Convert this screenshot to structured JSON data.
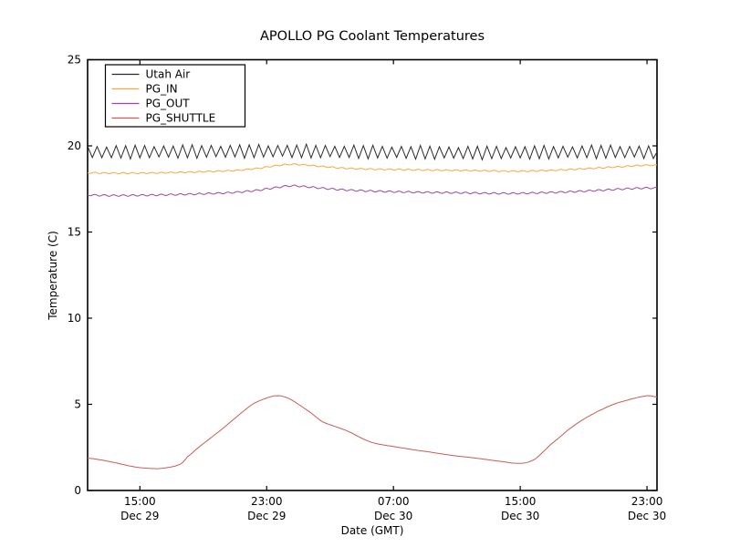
{
  "figure": {
    "background": "#ffffff",
    "frame_color": "#000000"
  },
  "chart_data": {
    "type": "line",
    "title": "APOLLO PG Coolant Temperatures",
    "xlabel": "Date (GMT)",
    "ylabel": "Temperature (C)",
    "ylim": [
      0,
      25
    ],
    "xlim_hours": [
      11.7,
      47.63
    ],
    "x_hours_epoch": "hours since Dec 29 00:00 GMT",
    "grid": false,
    "legend_position": "upper-left",
    "tick_direction": "in",
    "y_ticks": [
      0,
      5,
      10,
      15,
      20,
      25
    ],
    "x_ticks": [
      {
        "hour": 15,
        "time": "15:00",
        "date": "Dec 29"
      },
      {
        "hour": 23,
        "time": "23:00",
        "date": "Dec 29"
      },
      {
        "hour": 31,
        "time": "07:00",
        "date": "Dec 30"
      },
      {
        "hour": 39,
        "time": "15:00",
        "date": "Dec 30"
      },
      {
        "hour": 47,
        "time": "23:00",
        "date": "Dec 30"
      }
    ],
    "series": [
      {
        "name": "Utah Air",
        "color": "#2b2b2b",
        "waveform": "triangle",
        "period_hours": 0.6,
        "amplitude": 0.35,
        "peak_jitter": 0.04,
        "mean_keypoints": [
          [
            11.7,
            19.63
          ],
          [
            16,
            19.66
          ],
          [
            20,
            19.68
          ],
          [
            24,
            19.7
          ],
          [
            28,
            19.66
          ],
          [
            32,
            19.62
          ],
          [
            36,
            19.6
          ],
          [
            40,
            19.62
          ],
          [
            44,
            19.66
          ],
          [
            47.63,
            19.64
          ]
        ]
      },
      {
        "name": "PG_IN",
        "color": "#fca63c",
        "waveform": "sine",
        "period_hours": 0.6,
        "amplitude": 0.035,
        "mean_keypoints": [
          [
            11.7,
            18.44
          ],
          [
            13,
            18.42
          ],
          [
            15,
            18.42
          ],
          [
            17,
            18.45
          ],
          [
            19,
            18.5
          ],
          [
            21,
            18.57
          ],
          [
            22.5,
            18.7
          ],
          [
            23.6,
            18.85
          ],
          [
            24.5,
            18.93
          ],
          [
            25.3,
            18.9
          ],
          [
            26.5,
            18.8
          ],
          [
            28,
            18.7
          ],
          [
            29.5,
            18.65
          ],
          [
            31,
            18.63
          ],
          [
            33,
            18.6
          ],
          [
            35,
            18.58
          ],
          [
            37,
            18.55
          ],
          [
            38.5,
            18.53
          ],
          [
            40,
            18.55
          ],
          [
            42,
            18.62
          ],
          [
            44,
            18.72
          ],
          [
            45.5,
            18.8
          ],
          [
            46.8,
            18.87
          ],
          [
            47.63,
            18.87
          ]
        ]
      },
      {
        "name": "PG_OUT",
        "color": "#9c44a4",
        "waveform": "sine",
        "period_hours": 0.6,
        "amplitude": 0.045,
        "mean_keypoints": [
          [
            11.7,
            17.15
          ],
          [
            13,
            17.12
          ],
          [
            15,
            17.13
          ],
          [
            17,
            17.17
          ],
          [
            19,
            17.22
          ],
          [
            21,
            17.3
          ],
          [
            22.5,
            17.43
          ],
          [
            23.6,
            17.58
          ],
          [
            24.5,
            17.68
          ],
          [
            25.3,
            17.64
          ],
          [
            26.5,
            17.54
          ],
          [
            28,
            17.44
          ],
          [
            29.5,
            17.38
          ],
          [
            31,
            17.34
          ],
          [
            33,
            17.3
          ],
          [
            35,
            17.28
          ],
          [
            37,
            17.25
          ],
          [
            38.5,
            17.24
          ],
          [
            40,
            17.27
          ],
          [
            42,
            17.33
          ],
          [
            44,
            17.42
          ],
          [
            45.5,
            17.5
          ],
          [
            46.8,
            17.55
          ],
          [
            47.63,
            17.55
          ]
        ]
      },
      {
        "name": "PG_SHUTTLE",
        "color": "#c85c5c",
        "waveform": "none",
        "mean_keypoints": [
          [
            11.7,
            1.87
          ],
          [
            12.5,
            1.78
          ],
          [
            13.5,
            1.6
          ],
          [
            14.5,
            1.4
          ],
          [
            15.3,
            1.3
          ],
          [
            16.2,
            1.27
          ],
          [
            17,
            1.37
          ],
          [
            17.6,
            1.55
          ],
          [
            18,
            1.95
          ],
          [
            18.7,
            2.5
          ],
          [
            19.4,
            3.0
          ],
          [
            20.1,
            3.5
          ],
          [
            20.75,
            4.0
          ],
          [
            21.4,
            4.5
          ],
          [
            22.1,
            5.0
          ],
          [
            22.8,
            5.3
          ],
          [
            23.6,
            5.5
          ],
          [
            24.3,
            5.38
          ],
          [
            25,
            5.0
          ],
          [
            25.8,
            4.5
          ],
          [
            26.5,
            4.0
          ],
          [
            27.3,
            3.72
          ],
          [
            28.1,
            3.45
          ],
          [
            28.9,
            3.08
          ],
          [
            29.6,
            2.8
          ],
          [
            30.3,
            2.65
          ],
          [
            31,
            2.55
          ],
          [
            32,
            2.4
          ],
          [
            33,
            2.27
          ],
          [
            34,
            2.13
          ],
          [
            35,
            2.0
          ],
          [
            36,
            1.9
          ],
          [
            37,
            1.78
          ],
          [
            38,
            1.66
          ],
          [
            38.7,
            1.58
          ],
          [
            39.3,
            1.6
          ],
          [
            39.9,
            1.8
          ],
          [
            40.4,
            2.2
          ],
          [
            40.9,
            2.65
          ],
          [
            41.5,
            3.1
          ],
          [
            42,
            3.5
          ],
          [
            42.6,
            3.9
          ],
          [
            43.2,
            4.25
          ],
          [
            43.9,
            4.6
          ],
          [
            44.9,
            5.0
          ],
          [
            45.6,
            5.2
          ],
          [
            46.2,
            5.35
          ],
          [
            46.8,
            5.47
          ],
          [
            47.2,
            5.5
          ],
          [
            47.63,
            5.42
          ]
        ]
      }
    ]
  }
}
